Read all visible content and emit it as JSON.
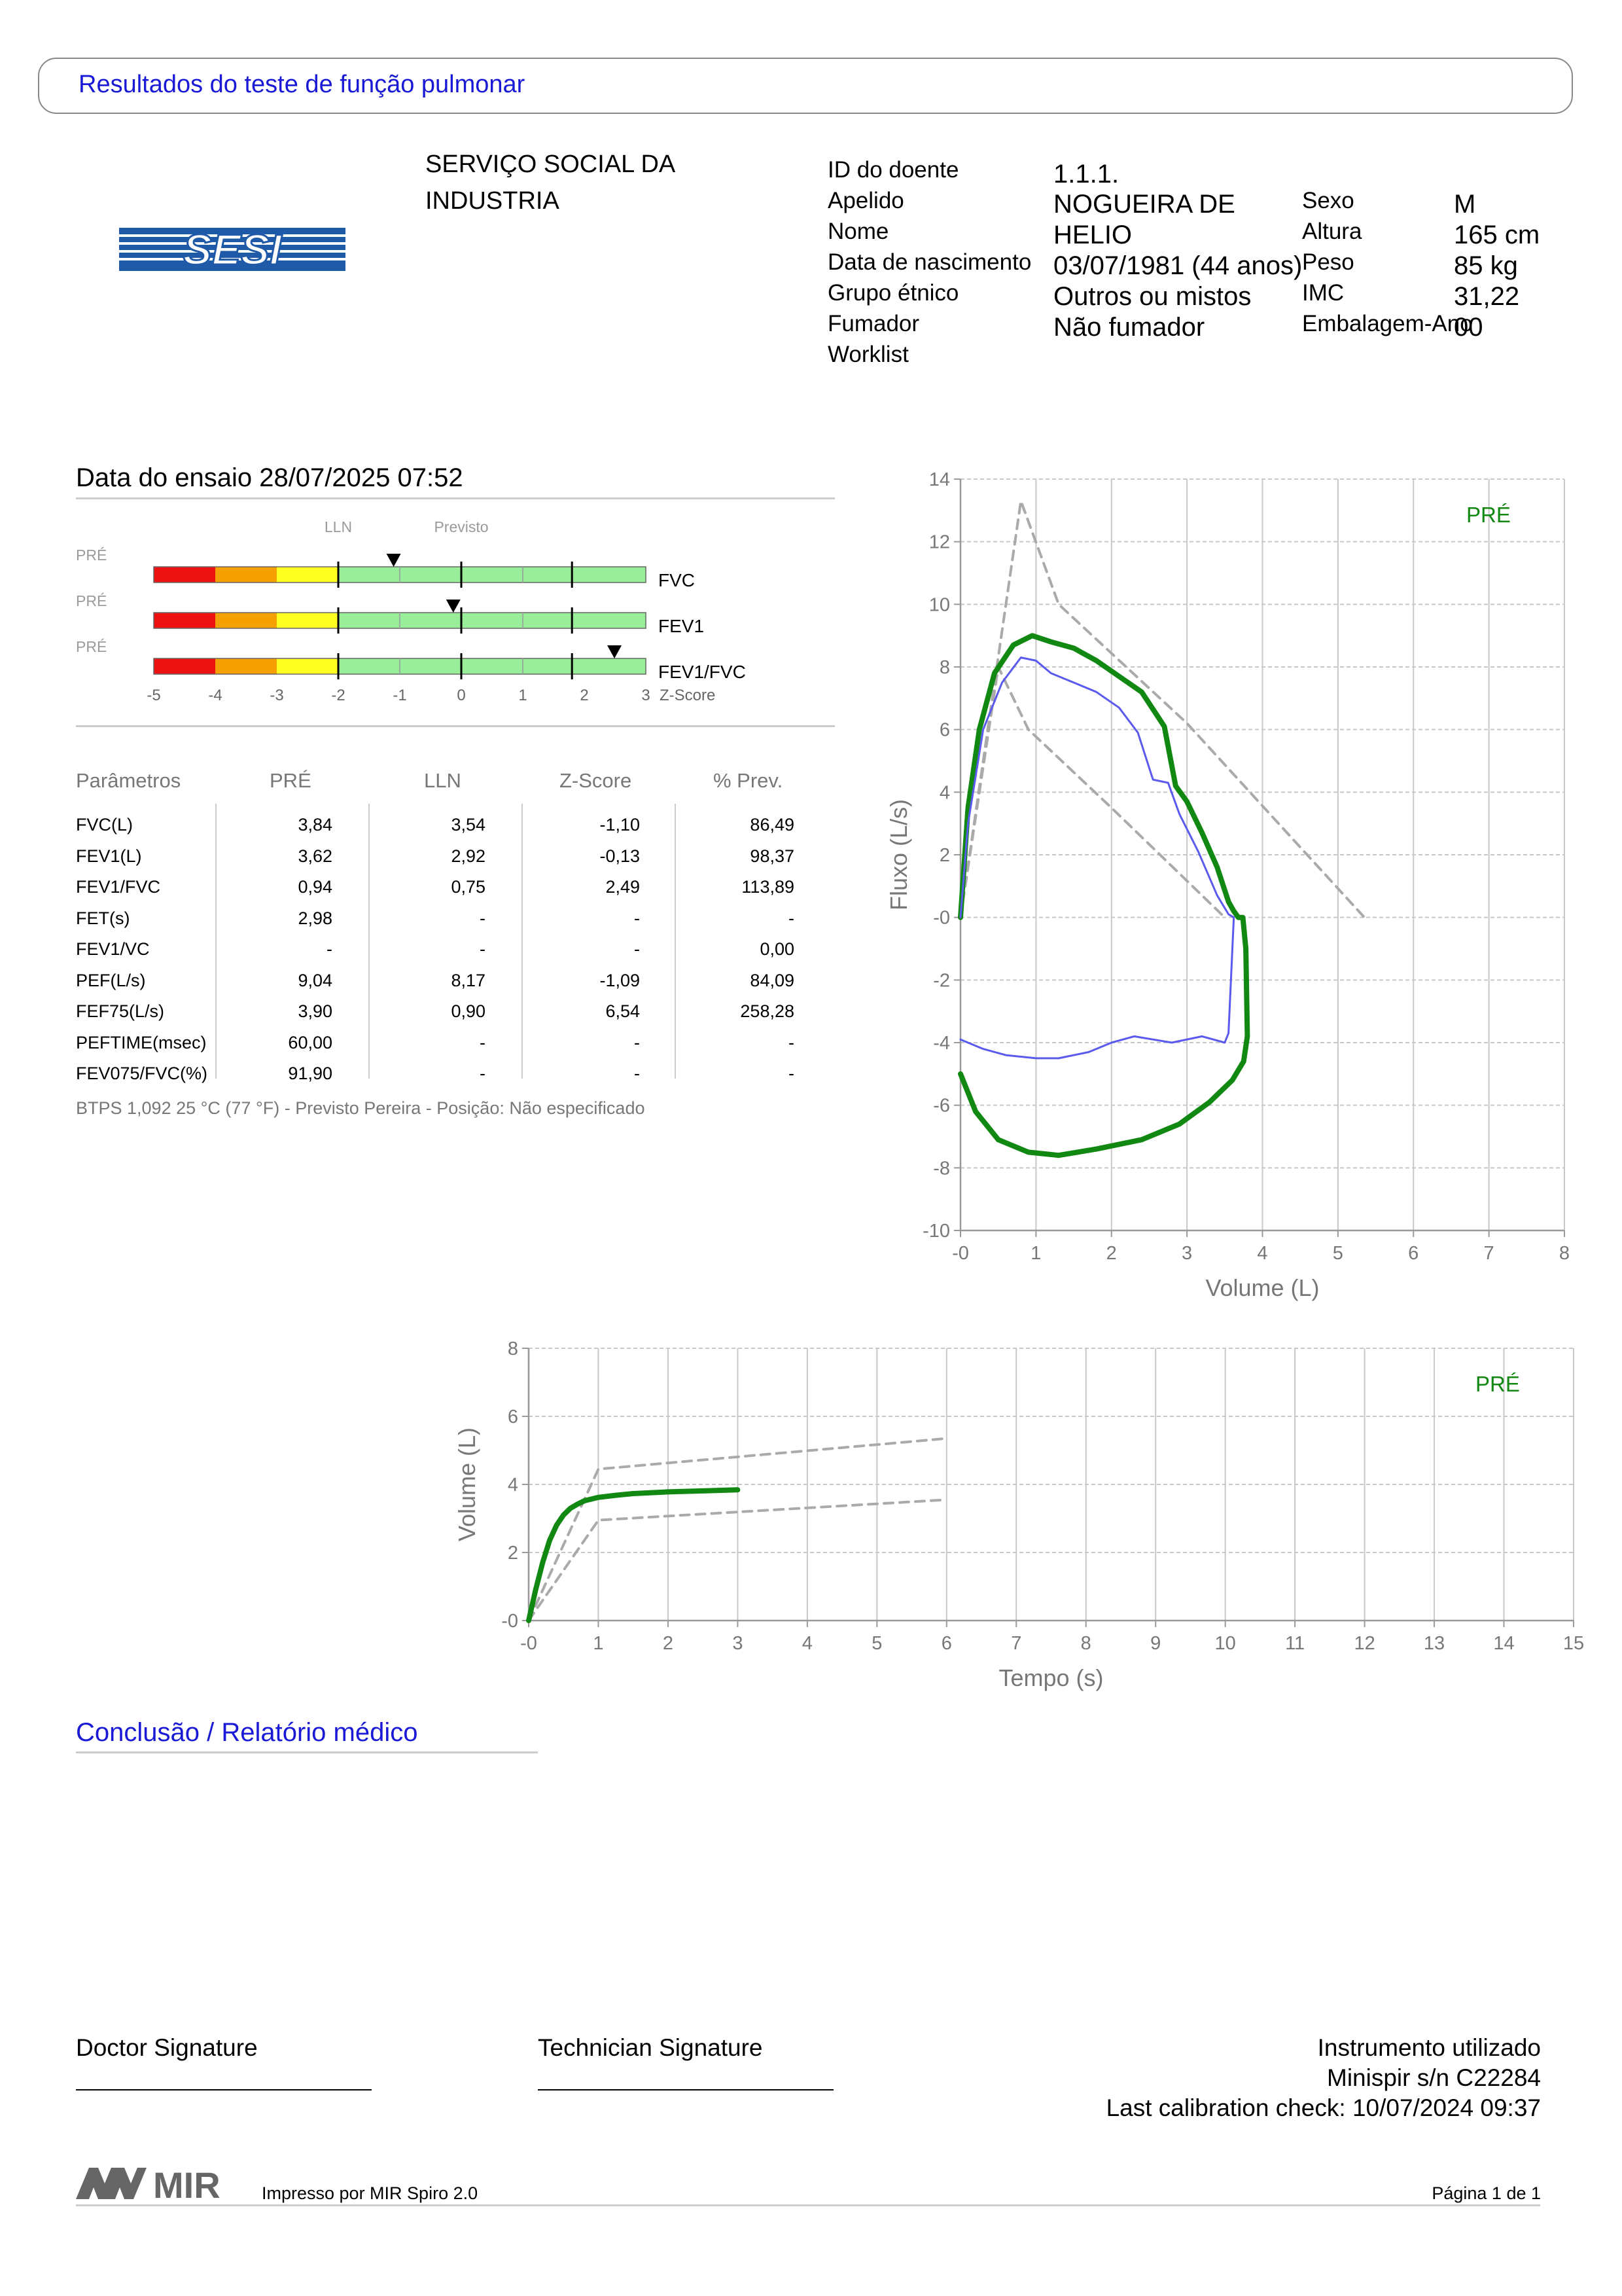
{
  "header": {
    "title": "Resultados do teste de função pulmonar"
  },
  "logo": {
    "text": "SESI",
    "color": "#1f5aa8"
  },
  "institution": {
    "line1": "SERVIÇO SOCIAL DA",
    "line2": "INDUSTRIA"
  },
  "patient": {
    "fields": [
      {
        "label": "ID do doente",
        "value": "1.1.1."
      },
      {
        "label": "Apelido",
        "value": "NOGUEIRA DE"
      },
      {
        "label": "Nome",
        "value": "HELIO"
      },
      {
        "label": "Data de nascimento",
        "value": "03/07/1981 (44 anos)"
      },
      {
        "label": "Grupo étnico",
        "value": "Outros ou mistos"
      },
      {
        "label": "Fumador",
        "value": "Não fumador"
      },
      {
        "label": "Worklist",
        "value": ""
      }
    ],
    "side_fields": [
      {
        "label": "Sexo",
        "value": "M"
      },
      {
        "label": "Altura",
        "value": "165 cm"
      },
      {
        "label": "Peso",
        "value": "85 kg"
      },
      {
        "label": "IMC",
        "value": "31,22"
      },
      {
        "label": "Embalagem-Ano",
        "value": "00"
      }
    ]
  },
  "test": {
    "date_label": "Data do ensaio 28/07/2025 07:52"
  },
  "zscore": {
    "lln_label": "LLN",
    "pred_label": "Previsto",
    "axis_label": "Z-Score",
    "ticks": [
      "-5",
      "-4",
      "-3",
      "-2",
      "-1",
      "0",
      "1",
      "2",
      "3"
    ],
    "rows": [
      {
        "tag": "PRÉ",
        "name": "FVC",
        "z": -1.1
      },
      {
        "tag": "PRÉ",
        "name": "FEV1",
        "z": -0.13
      },
      {
        "tag": "PRÉ",
        "name": "FEV1/FVC",
        "z": 2.49
      }
    ],
    "colors": {
      "red": "#ee1111",
      "orange": "#f5a000",
      "yellow": "#ffff22",
      "green": "#99ee99"
    }
  },
  "params": {
    "headers": [
      "Parâmetros",
      "PRÉ",
      "LLN",
      "Z-Score",
      "% Prev."
    ],
    "rows": [
      [
        "FVC(L)",
        "3,84",
        "3,54",
        "-1,10",
        "86,49"
      ],
      [
        "FEV1(L)",
        "3,62",
        "2,92",
        "-0,13",
        "98,37"
      ],
      [
        "FEV1/FVC",
        "0,94",
        "0,75",
        "2,49",
        "113,89"
      ],
      [
        "FET(s)",
        "2,98",
        "-",
        "-",
        "-"
      ],
      [
        "FEV1/VC",
        "-",
        "-",
        "-",
        "0,00"
      ],
      [
        "PEF(L/s)",
        "9,04",
        "8,17",
        "-1,09",
        "84,09"
      ],
      [
        "FEF75(L/s)",
        "3,90",
        "0,90",
        "6,54",
        "258,28"
      ],
      [
        "PEFTIME(msec)",
        "60,00",
        "-",
        "-",
        "-"
      ],
      [
        "FEV075/FVC(%)",
        "91,90",
        "-",
        "-",
        "-"
      ]
    ],
    "note": "BTPS 1,092 25 °C (77 °F) - Previsto Pereira - Posição: Não especificado"
  },
  "chart_data": [
    {
      "type": "line",
      "xlabel": "Volume (L)",
      "ylabel": "Fluxo (L/s)",
      "xlim": [
        0,
        8
      ],
      "ylim": [
        -10,
        14
      ],
      "x_ticks": [
        "-0",
        "1",
        "2",
        "3",
        "4",
        "5",
        "6",
        "7",
        "8"
      ],
      "y_ticks": [
        "14",
        "12",
        "10",
        "8",
        "6",
        "4",
        "2",
        "-0",
        "-2",
        "-4",
        "-6",
        "-8",
        "-10"
      ],
      "grid": true,
      "legend": {
        "text": "PRÉ",
        "position": "top-right"
      },
      "series": [
        {
          "style": "predicted-upper",
          "color": "#aaaaaa",
          "x": [
            0,
            0.8,
            1.3,
            3.0,
            5.35
          ],
          "y": [
            0,
            13.3,
            10.0,
            6.2,
            0
          ]
        },
        {
          "style": "predicted-lower",
          "color": "#aaaaaa",
          "x": [
            0,
            0.5,
            0.9,
            2.0,
            3.5
          ],
          "y": [
            0,
            8.0,
            6.0,
            3.5,
            0
          ]
        },
        {
          "style": "best-trial",
          "color": "#118811",
          "x": [
            0,
            0.1,
            0.25,
            0.45,
            0.7,
            0.95,
            1.2,
            1.5,
            1.8,
            2.1,
            2.4,
            2.7,
            2.85,
            3.0,
            3.2,
            3.4,
            3.55,
            3.62,
            3.68,
            3.74,
            3.78,
            3.8,
            3.75,
            3.6,
            3.3,
            2.9,
            2.4,
            1.8,
            1.3,
            0.9,
            0.5,
            0.2,
            0
          ],
          "y": [
            0,
            3.5,
            6.0,
            7.8,
            8.7,
            9.0,
            8.8,
            8.6,
            8.2,
            7.7,
            7.2,
            6.1,
            4.2,
            3.7,
            2.7,
            1.6,
            0.5,
            0.2,
            0.0,
            0.0,
            -1.0,
            -3.8,
            -4.6,
            -5.2,
            -5.9,
            -6.6,
            -7.1,
            -7.4,
            -7.6,
            -7.5,
            -7.1,
            -6.2,
            -5.0
          ]
        },
        {
          "style": "trial",
          "color": "#5a5aee",
          "x": [
            0,
            0.1,
            0.3,
            0.55,
            0.8,
            1.0,
            1.2,
            1.5,
            1.8,
            2.1,
            2.35,
            2.55,
            2.75,
            2.9,
            3.15,
            3.4,
            3.55,
            3.62,
            3.55,
            3.5,
            3.2,
            2.8,
            2.3,
            2.0,
            1.7,
            1.3,
            1.0,
            0.6,
            0.3,
            0
          ],
          "y": [
            0,
            3.0,
            6.0,
            7.5,
            8.3,
            8.2,
            7.8,
            7.5,
            7.2,
            6.7,
            5.9,
            4.4,
            4.3,
            3.3,
            2.1,
            0.7,
            0.1,
            0.0,
            -3.7,
            -4.0,
            -3.8,
            -4.0,
            -3.8,
            -4.0,
            -4.3,
            -4.5,
            -4.5,
            -4.4,
            -4.2,
            -3.9
          ]
        }
      ]
    },
    {
      "type": "line",
      "xlabel": "Tempo (s)",
      "ylabel": "Volume (L)",
      "xlim": [
        0,
        15
      ],
      "ylim": [
        0,
        8
      ],
      "x_ticks": [
        "-0",
        "1",
        "2",
        "3",
        "4",
        "5",
        "6",
        "7",
        "8",
        "9",
        "10",
        "11",
        "12",
        "13",
        "14",
        "15"
      ],
      "y_ticks": [
        "8",
        "6",
        "4",
        "2",
        "-0"
      ],
      "grid": true,
      "legend": {
        "text": "PRÉ",
        "position": "top-right"
      },
      "series": [
        {
          "style": "predicted-upper",
          "color": "#aaaaaa",
          "x": [
            0,
            1,
            6
          ],
          "y": [
            0,
            4.45,
            5.35
          ]
        },
        {
          "style": "predicted-lower",
          "color": "#aaaaaa",
          "x": [
            0,
            1,
            6
          ],
          "y": [
            0,
            2.95,
            3.55
          ]
        },
        {
          "style": "trial",
          "color": "#5a5aee",
          "x": [
            0,
            0.2,
            0.4,
            0.6,
            0.8,
            1.0,
            1.3,
            1.6
          ],
          "y": [
            0,
            1.7,
            2.8,
            3.3,
            3.5,
            3.6,
            3.67,
            3.72
          ]
        },
        {
          "style": "best-trial",
          "color": "#118811",
          "x": [
            0,
            0.1,
            0.2,
            0.3,
            0.4,
            0.5,
            0.6,
            0.7,
            0.8,
            1.0,
            1.25,
            1.5,
            2.0,
            2.5,
            3.0
          ],
          "y": [
            0,
            0.9,
            1.7,
            2.35,
            2.8,
            3.1,
            3.3,
            3.42,
            3.52,
            3.62,
            3.68,
            3.73,
            3.78,
            3.81,
            3.84
          ]
        }
      ]
    }
  ],
  "conclusion": {
    "title": "Conclusão / Relatório médico"
  },
  "signatures": {
    "doctor": "Doctor Signature",
    "technician": "Technician Signature"
  },
  "instrument": {
    "title": "Instrumento utilizado",
    "serial": "Minispir s/n C22284",
    "calibration": "Last calibration check: 10/07/2024 09:37"
  },
  "footer": {
    "brand": "MIR",
    "printed_by": "Impresso por MIR Spiro 2.0",
    "page": "Página 1 de 1"
  }
}
